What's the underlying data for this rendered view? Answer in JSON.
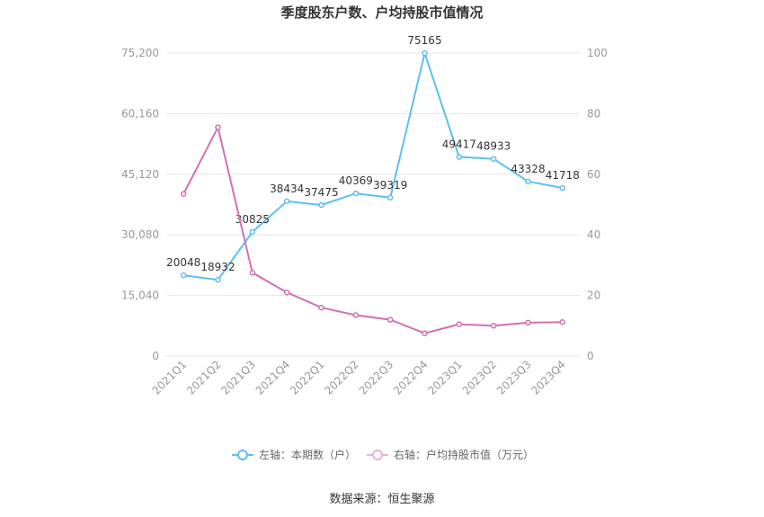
{
  "chart_data": {
    "type": "line",
    "title": "季度股东户数、户均持股市值情况",
    "categories": [
      "2021Q1",
      "2021Q2",
      "2021Q3",
      "2021Q4",
      "2022Q1",
      "2022Q2",
      "2022Q3",
      "2022Q4",
      "2023Q1",
      "2023Q2",
      "2023Q3",
      "2023Q4"
    ],
    "y_left": {
      "ticks": [
        "0",
        "15,040",
        "30,080",
        "45,120",
        "60,160",
        "75,200"
      ],
      "range": [
        0,
        75200
      ]
    },
    "y_right": {
      "ticks": [
        "0",
        "20",
        "40",
        "60",
        "80",
        "100"
      ],
      "range": [
        0,
        100
      ]
    },
    "series": [
      {
        "name": "左轴：本期数（户）",
        "axis": "left",
        "color": "#5bc0ee",
        "values": [
          20048,
          18932,
          30825,
          38434,
          37475,
          40369,
          39319,
          75165,
          49417,
          48933,
          43328,
          41718
        ],
        "labels": [
          "20048",
          "18932",
          "30825",
          "38434",
          "37475",
          "40369",
          "39319",
          "75165",
          "49417",
          "48933",
          "43328",
          "41718"
        ]
      },
      {
        "name": "右轴：户均持股市值（万元）",
        "axis": "right",
        "color": "#d36fb4",
        "values": [
          53.5,
          75.5,
          27.5,
          21,
          16,
          13.5,
          12,
          7.5,
          10.5,
          10,
          11,
          11.2
        ]
      }
    ],
    "grid": true,
    "legend_position": "bottom"
  },
  "source": "数据来源：恒生聚源"
}
